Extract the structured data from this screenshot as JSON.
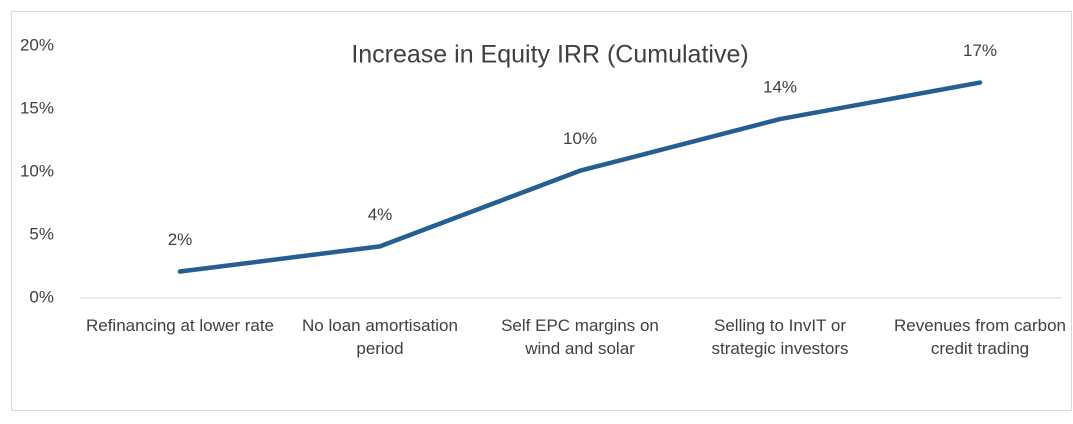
{
  "chart_data": {
    "type": "line",
    "title": "Increase in Equity IRR (Cumulative)",
    "categories": [
      "Refinancing at lower rate",
      "No loan amortisation period",
      "Self EPC margins on wind and solar",
      "Selling to InvIT or strategic investors",
      "Revenues from carbon credit trading"
    ],
    "series": [
      {
        "name": "Increase in Equity IRR",
        "color": "#255e91",
        "values": [
          2.1,
          4.1,
          10.1,
          14.2,
          17.1
        ],
        "value_labels": [
          "2%",
          "4%",
          "10%",
          "14%",
          "17%"
        ]
      }
    ],
    "ylim": [
      0,
      20
    ],
    "yticks": [
      {
        "value": 0,
        "label": "0%"
      },
      {
        "value": 5,
        "label": "5%"
      },
      {
        "value": 10,
        "label": "10%"
      },
      {
        "value": 15,
        "label": "15%"
      },
      {
        "value": 20,
        "label": "20%"
      }
    ],
    "grid": false
  }
}
